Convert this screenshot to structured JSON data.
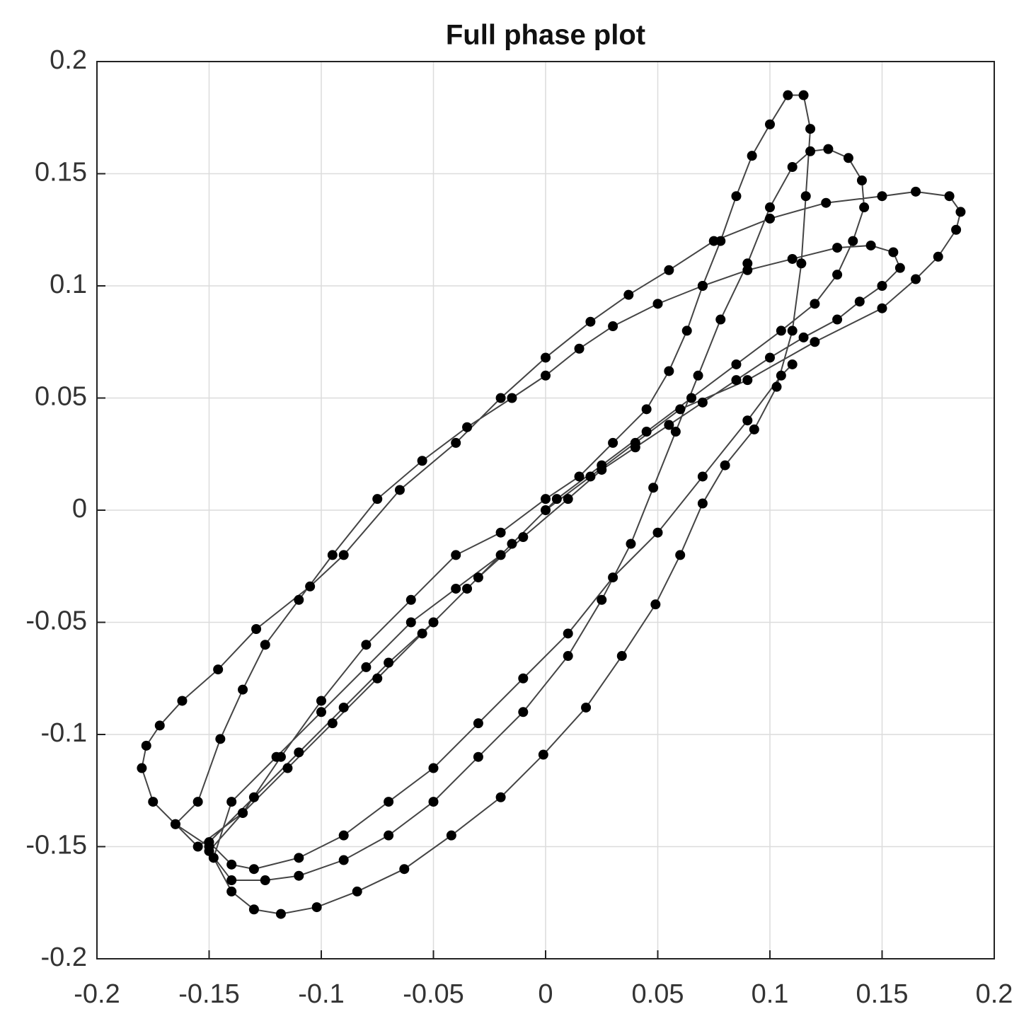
{
  "chart_data": {
    "type": "line",
    "title": "Full phase plot",
    "color": "#000000",
    "grid": true,
    "markers": true,
    "xlim": [
      -0.2,
      0.2
    ],
    "ylim": [
      -0.2,
      0.2
    ],
    "xticks": [
      -0.2,
      -0.15,
      -0.1,
      -0.05,
      0,
      0.05,
      0.1,
      0.15,
      0.2
    ],
    "yticks": [
      -0.2,
      -0.15,
      -0.1,
      -0.05,
      0,
      0.05,
      0.1,
      0.15,
      0.2
    ],
    "x": [
      -0.15,
      -0.165,
      -0.175,
      -0.18,
      -0.178,
      -0.172,
      -0.162,
      -0.146,
      -0.129,
      -0.105,
      -0.09,
      -0.065,
      -0.04,
      -0.02,
      0,
      0.02,
      0.037,
      0.055,
      0.075,
      0.1,
      0.125,
      0.15,
      0.165,
      0.18,
      0.185,
      0.183,
      0.175,
      0.165,
      0.15,
      0.12,
      0.09,
      0.06,
      0.04,
      0.02,
      0,
      -0.02,
      -0.04,
      -0.06,
      -0.08,
      -0.1,
      -0.12,
      -0.14,
      -0.148,
      -0.14,
      -0.13,
      -0.118,
      -0.102,
      -0.084,
      -0.063,
      -0.042,
      -0.02,
      -0.001,
      0.018,
      0.034,
      0.049,
      0.06,
      0.07,
      0.08,
      0.093,
      0.103,
      0.11,
      0.114,
      0.116,
      0.118,
      0.115,
      0.108,
      0.1,
      0.092,
      0.085,
      0.078,
      0.07,
      0.063,
      0.055,
      0.045,
      0.03,
      0.015,
      0,
      -0.02,
      -0.04,
      -0.06,
      -0.08,
      -0.1,
      -0.118,
      -0.135,
      -0.15,
      -0.14,
      -0.125,
      -0.11,
      -0.09,
      -0.07,
      -0.05,
      -0.03,
      -0.01,
      0.01,
      0.025,
      0.038,
      0.048,
      0.058,
      0.068,
      0.078,
      0.09,
      0.1,
      0.11,
      0.118,
      0.126,
      0.135,
      0.141,
      0.142,
      0.137,
      0.13,
      0.12,
      0.105,
      0.085,
      0.065,
      0.045,
      0.025,
      0.005,
      -0.015,
      -0.035,
      -0.055,
      -0.075,
      -0.095,
      -0.115,
      -0.135,
      -0.155,
      -0.165,
      -0.155,
      -0.145,
      -0.135,
      -0.125,
      -0.11,
      -0.095,
      -0.075,
      -0.055,
      -0.035,
      -0.015,
      0,
      0.015,
      0.03,
      0.05,
      0.07,
      0.09,
      0.11,
      0.13,
      0.145,
      0.155,
      0.158,
      0.15,
      0.14,
      0.13,
      0.115,
      0.1,
      0.085,
      0.07,
      0.055,
      0.04,
      0.025,
      0.01,
      -0.01,
      -0.03,
      -0.05,
      -0.07,
      -0.09,
      -0.11,
      -0.13,
      -0.15,
      -0.14,
      -0.13,
      -0.11,
      -0.09,
      -0.07,
      -0.05,
      -0.03,
      -0.01,
      0.01,
      0.03,
      0.05,
      0.07,
      0.09,
      0.105,
      0.11
    ],
    "values": [
      -0.15,
      -0.14,
      -0.13,
      -0.115,
      -0.105,
      -0.096,
      -0.085,
      -0.071,
      -0.053,
      -0.034,
      -0.02,
      0.009,
      0.03,
      0.05,
      0.068,
      0.084,
      0.096,
      0.107,
      0.12,
      0.13,
      0.137,
      0.14,
      0.142,
      0.14,
      0.133,
      0.125,
      0.113,
      0.103,
      0.09,
      0.075,
      0.058,
      0.045,
      0.03,
      0.015,
      0,
      -0.02,
      -0.035,
      -0.05,
      -0.07,
      -0.09,
      -0.11,
      -0.13,
      -0.155,
      -0.17,
      -0.178,
      -0.18,
      -0.177,
      -0.17,
      -0.16,
      -0.145,
      -0.128,
      -0.109,
      -0.088,
      -0.065,
      -0.042,
      -0.02,
      0.003,
      0.02,
      0.036,
      0.055,
      0.08,
      0.11,
      0.14,
      0.17,
      0.185,
      0.185,
      0.172,
      0.158,
      0.14,
      0.12,
      0.1,
      0.08,
      0.062,
      0.045,
      0.03,
      0.015,
      0.005,
      -0.01,
      -0.02,
      -0.04,
      -0.06,
      -0.085,
      -0.11,
      -0.135,
      -0.152,
      -0.165,
      -0.165,
      -0.163,
      -0.156,
      -0.145,
      -0.13,
      -0.11,
      -0.09,
      -0.065,
      -0.04,
      -0.015,
      0.01,
      0.035,
      0.06,
      0.085,
      0.11,
      0.135,
      0.153,
      0.16,
      0.161,
      0.157,
      0.147,
      0.135,
      0.12,
      0.105,
      0.092,
      0.08,
      0.065,
      0.05,
      0.035,
      0.02,
      0.005,
      -0.015,
      -0.035,
      -0.055,
      -0.075,
      -0.095,
      -0.115,
      -0.135,
      -0.15,
      -0.14,
      -0.13,
      -0.102,
      -0.08,
      -0.06,
      -0.04,
      -0.02,
      0.005,
      0.022,
      0.037,
      0.05,
      0.06,
      0.072,
      0.082,
      0.092,
      0.1,
      0.107,
      0.112,
      0.117,
      0.118,
      0.115,
      0.108,
      0.1,
      0.093,
      0.085,
      0.077,
      0.068,
      0.058,
      0.048,
      0.038,
      0.028,
      0.018,
      0.005,
      -0.012,
      -0.03,
      -0.05,
      -0.068,
      -0.088,
      -0.108,
      -0.128,
      -0.148,
      -0.158,
      -0.16,
      -0.155,
      -0.145,
      -0.13,
      -0.115,
      -0.095,
      -0.075,
      -0.055,
      -0.03,
      -0.01,
      0.015,
      0.04,
      0.06,
      0.065
    ]
  }
}
